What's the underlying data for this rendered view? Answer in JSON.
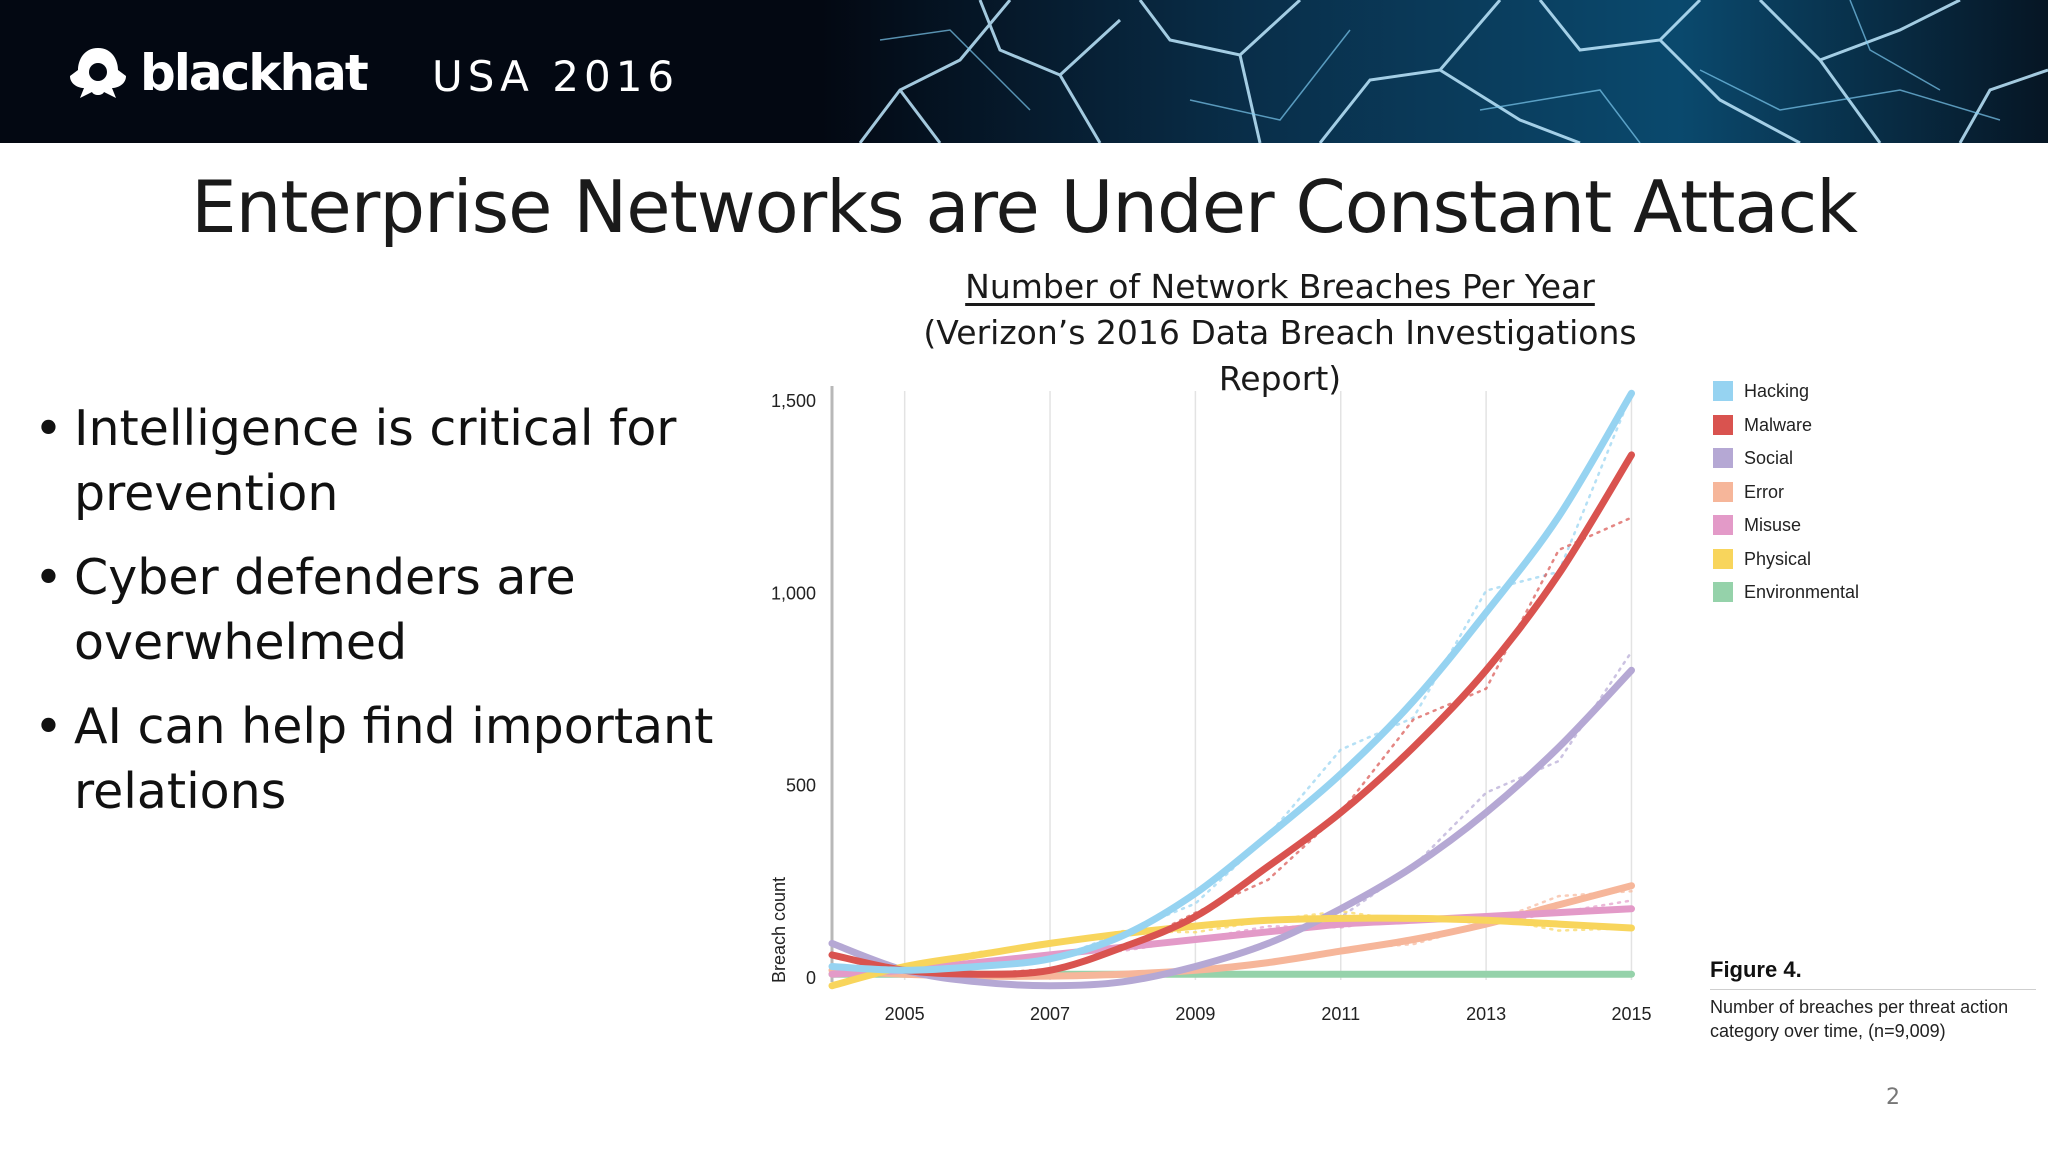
{
  "banner": {
    "brand": "blackhat",
    "event": "USA 2016"
  },
  "slide": {
    "title": "Enterprise Networks are Under Constant Attack",
    "page_number": "2"
  },
  "bullets": [
    {
      "symbol": "•",
      "text": "Intelligence is critical for prevention"
    },
    {
      "symbol": "•",
      "text": "Cyber defenders are overwhelmed"
    },
    {
      "symbol": "•",
      "text": "AI can help find important relations"
    }
  ],
  "chart_heading": {
    "line1": "Number of Network Breaches Per Year",
    "line2": "(Verizon’s 2016 Data Breach Investigations Report)"
  },
  "figure": {
    "label": "Figure 4.",
    "caption": "Number of breaches per threat action category over time, (n=9,009)"
  },
  "chart_data": {
    "type": "line",
    "ylabel": "Breach count",
    "xlim": [
      2004,
      2015.2
    ],
    "ylim": [
      0,
      1500
    ],
    "x_ticks": [
      "2005",
      "2007",
      "2009",
      "2011",
      "2013",
      "2015"
    ],
    "y_ticks": [
      "0",
      "500",
      "1,000",
      "1,500"
    ],
    "grid": "vertical",
    "legend_position": "right",
    "x": [
      2004,
      2005,
      2006,
      2007,
      2008,
      2009,
      2010,
      2011,
      2012,
      2013,
      2014,
      2015
    ],
    "series": [
      {
        "name": "Hacking",
        "color": "#96d3f1",
        "values": [
          30,
          20,
          30,
          50,
          110,
          220,
          370,
          530,
          720,
          950,
          1200,
          1520
        ]
      },
      {
        "name": "Malware",
        "color": "#d9534f",
        "values": [
          60,
          20,
          10,
          20,
          80,
          160,
          290,
          430,
          600,
          800,
          1050,
          1360
        ]
      },
      {
        "name": "Social",
        "color": "#b5a8d4",
        "values": [
          90,
          20,
          -10,
          -20,
          -10,
          30,
          90,
          180,
          290,
          430,
          600,
          800
        ]
      },
      {
        "name": "Error",
        "color": "#f6b69a",
        "values": [
          20,
          10,
          5,
          5,
          10,
          20,
          40,
          70,
          100,
          140,
          190,
          240
        ]
      },
      {
        "name": "Misuse",
        "color": "#e39ac8",
        "values": [
          10,
          20,
          40,
          60,
          80,
          100,
          120,
          140,
          150,
          160,
          170,
          180
        ]
      },
      {
        "name": "Physical",
        "color": "#f8d55c",
        "values": [
          -20,
          30,
          60,
          90,
          115,
          135,
          150,
          155,
          155,
          150,
          140,
          130
        ]
      },
      {
        "name": "Environmental",
        "color": "#95d2aa",
        "values": [
          10,
          10,
          10,
          10,
          10,
          10,
          10,
          10,
          10,
          10,
          10,
          10
        ]
      }
    ]
  }
}
